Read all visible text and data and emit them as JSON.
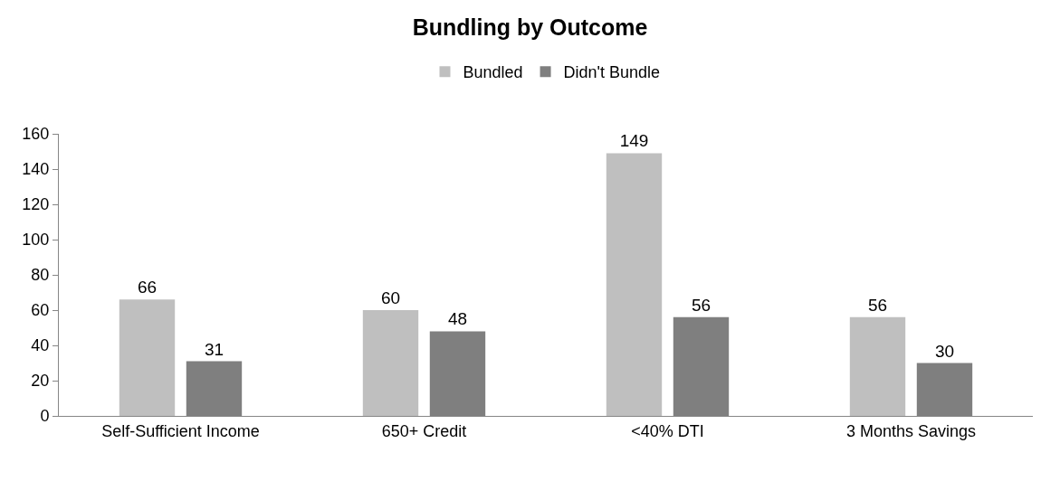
{
  "chart_data": {
    "type": "bar",
    "title": "Bundling by Outcome",
    "categories": [
      "Self-Sufficient Income",
      "650+ Credit",
      "<40% DTI",
      "3 Months Savings"
    ],
    "series": [
      {
        "name": "Bundled",
        "color": "#bfbfbf",
        "values": [
          66,
          60,
          149,
          56
        ]
      },
      {
        "name": "Didn't Bundle",
        "color": "#7f7f7f",
        "values": [
          31,
          48,
          56,
          30
        ]
      }
    ],
    "ylim": [
      0,
      160
    ],
    "yticks": [
      0,
      20,
      40,
      60,
      80,
      100,
      120,
      140,
      160
    ],
    "data_labels": true,
    "legend": "top"
  }
}
